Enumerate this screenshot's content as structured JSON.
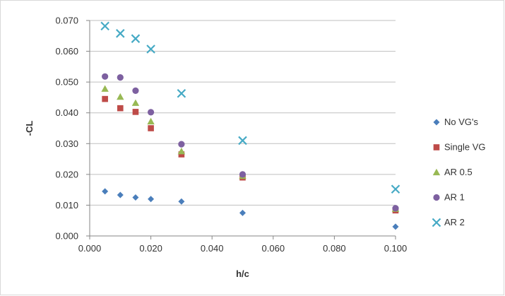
{
  "chart_data": {
    "type": "scatter",
    "title": "",
    "xlabel": "h/c",
    "ylabel": "-CL",
    "xlim": [
      0.0,
      0.1
    ],
    "ylim": [
      0.0,
      0.07
    ],
    "xticks": [
      "0.000",
      "0.020",
      "0.040",
      "0.060",
      "0.080",
      "0.100"
    ],
    "yticks": [
      "0.000",
      "0.010",
      "0.020",
      "0.030",
      "0.040",
      "0.050",
      "0.060",
      "0.070"
    ],
    "grid": "horizontal",
    "legend_position": "right",
    "series": [
      {
        "name": "No VG's",
        "marker": "diamond",
        "color": "#4a7ebb",
        "x": [
          0.005,
          0.01,
          0.015,
          0.02,
          0.03,
          0.05,
          0.1
        ],
        "y": [
          0.0145,
          0.0133,
          0.0125,
          0.012,
          0.0112,
          0.0075,
          0.003
        ]
      },
      {
        "name": "Single VG",
        "marker": "square",
        "color": "#be4b48",
        "x": [
          0.005,
          0.01,
          0.015,
          0.02,
          0.03,
          0.05,
          0.1
        ],
        "y": [
          0.0445,
          0.0415,
          0.0403,
          0.035,
          0.0265,
          0.019,
          0.0083
        ]
      },
      {
        "name": "AR 0.5",
        "marker": "triangle",
        "color": "#98b954",
        "x": [
          0.005,
          0.01,
          0.015,
          0.02,
          0.03,
          0.05,
          0.1
        ],
        "y": [
          0.0478,
          0.0452,
          0.0432,
          0.0372,
          0.0275,
          0.0195,
          0.0088
        ]
      },
      {
        "name": "AR 1",
        "marker": "circle",
        "color": "#7d60a0",
        "x": [
          0.005,
          0.01,
          0.015,
          0.02,
          0.03,
          0.05,
          0.1
        ],
        "y": [
          0.0518,
          0.0515,
          0.0472,
          0.0402,
          0.0298,
          0.02,
          0.009
        ]
      },
      {
        "name": "AR 2",
        "marker": "x",
        "color": "#46aac5",
        "x": [
          0.005,
          0.01,
          0.015,
          0.02,
          0.03,
          0.05,
          0.1
        ],
        "y": [
          0.0682,
          0.0658,
          0.0641,
          0.0607,
          0.0463,
          0.031,
          0.0152
        ]
      }
    ]
  }
}
